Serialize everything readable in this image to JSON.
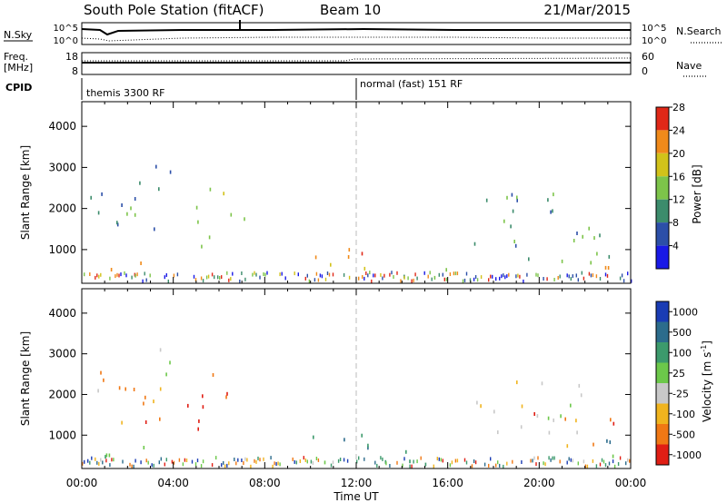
{
  "header": {
    "station": "South Pole Station (fitACF)",
    "beam": "Beam 10",
    "date": "21/Mar/2015"
  },
  "top_panel": {
    "left_label": "N.Sky",
    "left_ticks": [
      "10^5",
      "10^0"
    ],
    "right_label": "N.Search",
    "right_ticks": [
      "10^5",
      "10^0"
    ]
  },
  "freq_panel": {
    "left_label": "Freq.",
    "left_units": "[MHz]",
    "left_ticks": [
      "18",
      "8"
    ],
    "right_label": "Nave",
    "right_ticks": [
      "60",
      "0"
    ]
  },
  "cpid": {
    "label": "CPID",
    "modes": [
      {
        "start_hour": 0,
        "text": "themis 3300 RF"
      },
      {
        "start_hour": 12,
        "text": "normal (fast) 151 RF"
      }
    ]
  },
  "chart_data": [
    {
      "type": "heatmap",
      "name": "power",
      "xlabel": "",
      "ylabel": "Slant Range [km]",
      "x_ticks": [
        "00:00",
        "04:00",
        "08:00",
        "12:00",
        "16:00",
        "20:00",
        "00:00"
      ],
      "xlim_hours": [
        0,
        24
      ],
      "ylim_km": [
        180,
        4600
      ],
      "y_ticks": [
        1000,
        2000,
        3000,
        4000
      ],
      "colorbar": {
        "label": "Power [dB]",
        "ticks": [
          "4",
          "8",
          "12",
          "16",
          "20",
          "24",
          "28"
        ],
        "colors": [
          "#1919e6",
          "#2c4fa8",
          "#3c8c6c",
          "#7dc44a",
          "#d2c21a",
          "#f08a1a",
          "#e02818"
        ]
      },
      "scatter_regions": [
        {
          "t": [
            0.1,
            1.0
          ],
          "r": [
            1800,
            2600
          ],
          "level": 1
        },
        {
          "t": [
            0.9,
            2.8
          ],
          "r": [
            220,
            800
          ],
          "level": 6
        },
        {
          "t": [
            1.5,
            3.5
          ],
          "r": [
            1300,
            2700
          ],
          "level": 2
        },
        {
          "t": [
            3.0,
            4.0
          ],
          "r": [
            2500,
            3200
          ],
          "level": 1
        },
        {
          "t": [
            4.6,
            5.6
          ],
          "r": [
            1100,
            2300
          ],
          "level": 3
        },
        {
          "t": [
            5.5,
            6.5
          ],
          "r": [
            1200,
            2600
          ],
          "level": 4
        },
        {
          "t": [
            6.6,
            7.2
          ],
          "r": [
            1600,
            2200
          ],
          "level": 2
        },
        {
          "t": [
            9.5,
            12.8
          ],
          "r": [
            350,
            1100
          ],
          "level": 5
        },
        {
          "t": [
            13.0,
            16.0
          ],
          "r": [
            200,
            700
          ],
          "level": 3
        },
        {
          "t": [
            17.0,
            22.0
          ],
          "r": [
            1000,
            2400
          ],
          "level": 2
        },
        {
          "t": [
            18.5,
            23.5
          ],
          "r": [
            700,
            1600
          ],
          "level": 3
        },
        {
          "t": [
            22.0,
            24.0
          ],
          "r": [
            250,
            800
          ],
          "level": 5
        }
      ]
    },
    {
      "type": "heatmap",
      "name": "velocity",
      "xlabel": "Time UT",
      "ylabel": "Slant Range [km]",
      "x_ticks": [
        "00:00",
        "04:00",
        "08:00",
        "12:00",
        "16:00",
        "20:00",
        "00:00"
      ],
      "xlim_hours": [
        0,
        24
      ],
      "ylim_km": [
        180,
        4600
      ],
      "y_ticks": [
        1000,
        2000,
        3000,
        4000
      ],
      "colorbar": {
        "label": "Velocity [m s^-1]",
        "ticks": [
          "1000",
          "500",
          "100",
          "25",
          "-25",
          "-100",
          "-500",
          "-1000"
        ],
        "colors": [
          "#1a3cb4",
          "#2c6c8c",
          "#3c9a6c",
          "#6cc84a",
          "#c8c8c8",
          "#f0b41e",
          "#f07814",
          "#e01e14"
        ]
      },
      "scatter_regions": [
        {
          "t": [
            0.1,
            1.0
          ],
          "r": [
            1800,
            2600
          ],
          "level": 5
        },
        {
          "t": [
            0.9,
            2.8
          ],
          "r": [
            220,
            800
          ],
          "level": 3
        },
        {
          "t": [
            1.5,
            3.5
          ],
          "r": [
            1300,
            2700
          ],
          "level": 6
        },
        {
          "t": [
            3.0,
            4.0
          ],
          "r": [
            2500,
            3200
          ],
          "level": 4
        },
        {
          "t": [
            4.6,
            5.6
          ],
          "r": [
            1100,
            2300
          ],
          "level": 7
        },
        {
          "t": [
            5.5,
            6.5
          ],
          "r": [
            1200,
            2600
          ],
          "level": 6
        },
        {
          "t": [
            9.5,
            12.8
          ],
          "r": [
            350,
            1100
          ],
          "level": 2
        },
        {
          "t": [
            13.0,
            16.0
          ],
          "r": [
            200,
            700
          ],
          "level": 3
        },
        {
          "t": [
            17.0,
            22.0
          ],
          "r": [
            1000,
            2400
          ],
          "level": 4
        },
        {
          "t": [
            18.5,
            23.5
          ],
          "r": [
            700,
            1600
          ],
          "level": 6
        },
        {
          "t": [
            22.0,
            24.0
          ],
          "r": [
            250,
            1200
          ],
          "level": 2
        }
      ]
    }
  ]
}
